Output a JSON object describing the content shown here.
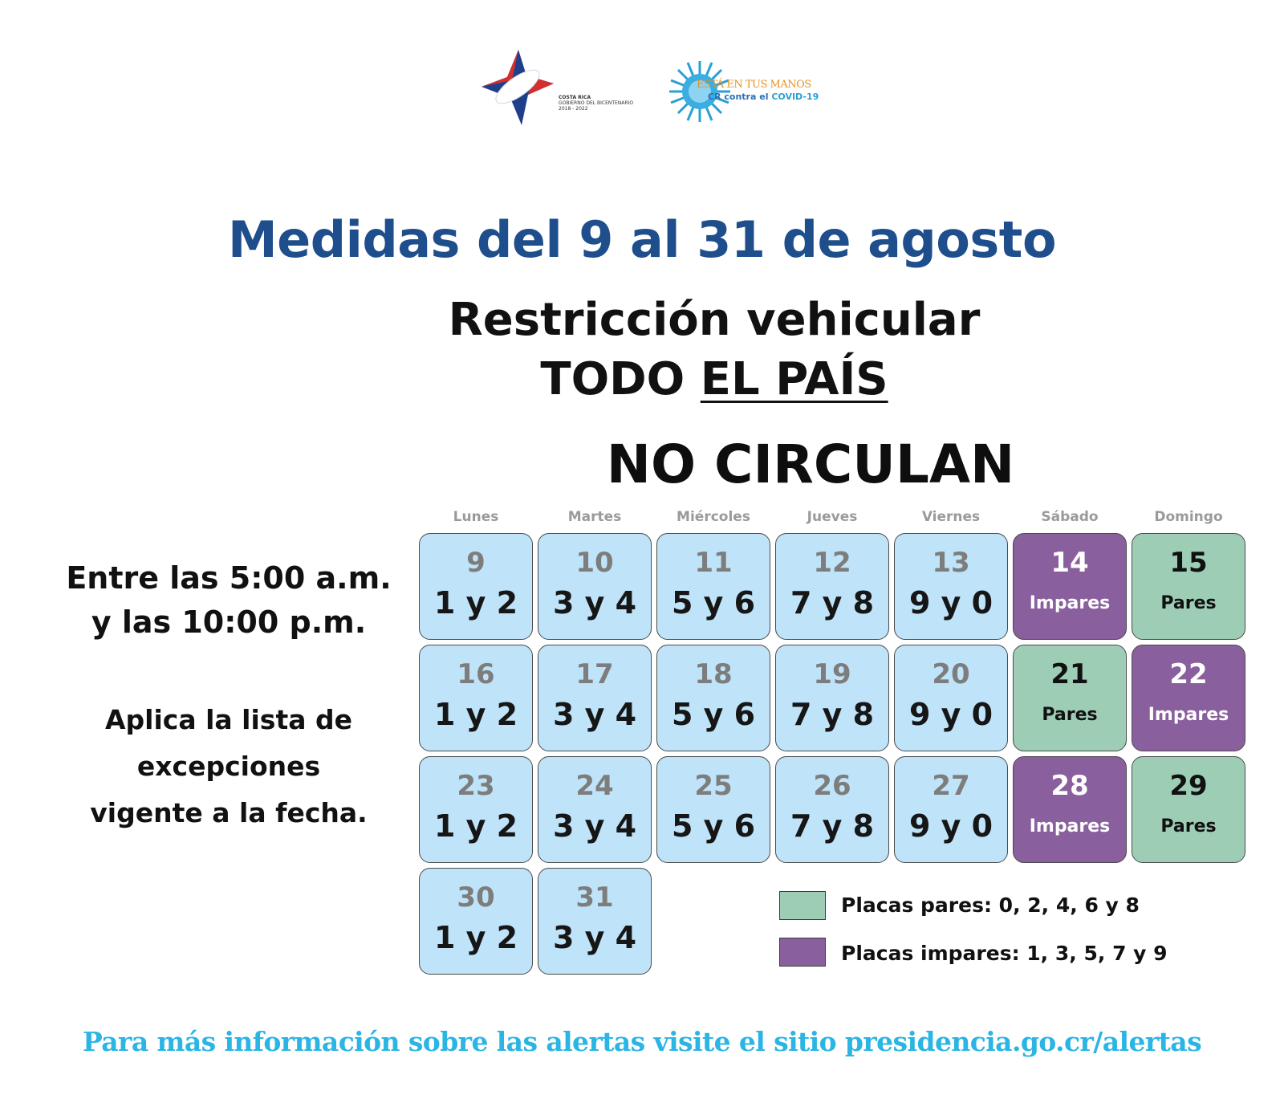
{
  "logos": {
    "gov_line1": "COSTA RICA",
    "gov_line2": "GOBIERNO DEL BICENTENARIO",
    "gov_line3": "2018 - 2022",
    "covid_line1": "ESTÁ EN TUS MANOS",
    "covid_cr": "CR",
    "covid_contra": "contra el",
    "covid_covid": "COVID-19"
  },
  "title": "Medidas del 9 al 31 de agosto",
  "subtitle_line1": "Restricción vehicular",
  "subtitle_todo": "TODO",
  "subtitle_pais": "EL PAÍS",
  "no_circulan": "NO CIRCULAN",
  "hours_line1": "Entre las 5:00 a.m.",
  "hours_line2": "y las 10:00 p.m.",
  "exceptions_line1": "Aplica la lista de",
  "exceptions_line2": "excepciones",
  "exceptions_line3": "vigente a la fecha.",
  "calendar": {
    "days_of_week": [
      "Lunes",
      "Martes",
      "Miércoles",
      "Jueves",
      "Viernes",
      "Sábado",
      "Domingo"
    ],
    "cells": [
      {
        "day": "9",
        "label": "1 y 2",
        "kind": "week"
      },
      {
        "day": "10",
        "label": "3 y 4",
        "kind": "week"
      },
      {
        "day": "11",
        "label": "5 y 6",
        "kind": "week"
      },
      {
        "day": "12",
        "label": "7 y 8",
        "kind": "week"
      },
      {
        "day": "13",
        "label": "9 y 0",
        "kind": "week"
      },
      {
        "day": "14",
        "label": "Impares",
        "kind": "impar"
      },
      {
        "day": "15",
        "label": "Pares",
        "kind": "par"
      },
      {
        "day": "16",
        "label": "1 y 2",
        "kind": "week"
      },
      {
        "day": "17",
        "label": "3 y 4",
        "kind": "week"
      },
      {
        "day": "18",
        "label": "5 y 6",
        "kind": "week"
      },
      {
        "day": "19",
        "label": "7 y 8",
        "kind": "week"
      },
      {
        "day": "20",
        "label": "9 y 0",
        "kind": "week"
      },
      {
        "day": "21",
        "label": "Pares",
        "kind": "par"
      },
      {
        "day": "22",
        "label": "Impares",
        "kind": "impar"
      },
      {
        "day": "23",
        "label": "1 y 2",
        "kind": "week"
      },
      {
        "day": "24",
        "label": "3 y 4",
        "kind": "week"
      },
      {
        "day": "25",
        "label": "5 y 6",
        "kind": "week"
      },
      {
        "day": "26",
        "label": "7 y 8",
        "kind": "week"
      },
      {
        "day": "27",
        "label": "9 y 0",
        "kind": "week"
      },
      {
        "day": "28",
        "label": "Impares",
        "kind": "impar"
      },
      {
        "day": "29",
        "label": "Pares",
        "kind": "par"
      },
      {
        "day": "30",
        "label": "1 y 2",
        "kind": "week"
      },
      {
        "day": "31",
        "label": "3 y 4",
        "kind": "week"
      }
    ]
  },
  "legend": {
    "pares": "Placas pares: 0, 2, 4, 6 y 8",
    "impares": "Placas impares: 1, 3, 5, 7 y 9"
  },
  "colors": {
    "title": "#1f4e8c",
    "weekday_cell": "#bfe3f8",
    "impares_cell": "#8a5f9e",
    "pares_cell": "#9ecdb6",
    "footer": "#2ab5e4"
  },
  "footer": "Para más información sobre las alertas visite el sitio presidencia.go.cr/alertas"
}
